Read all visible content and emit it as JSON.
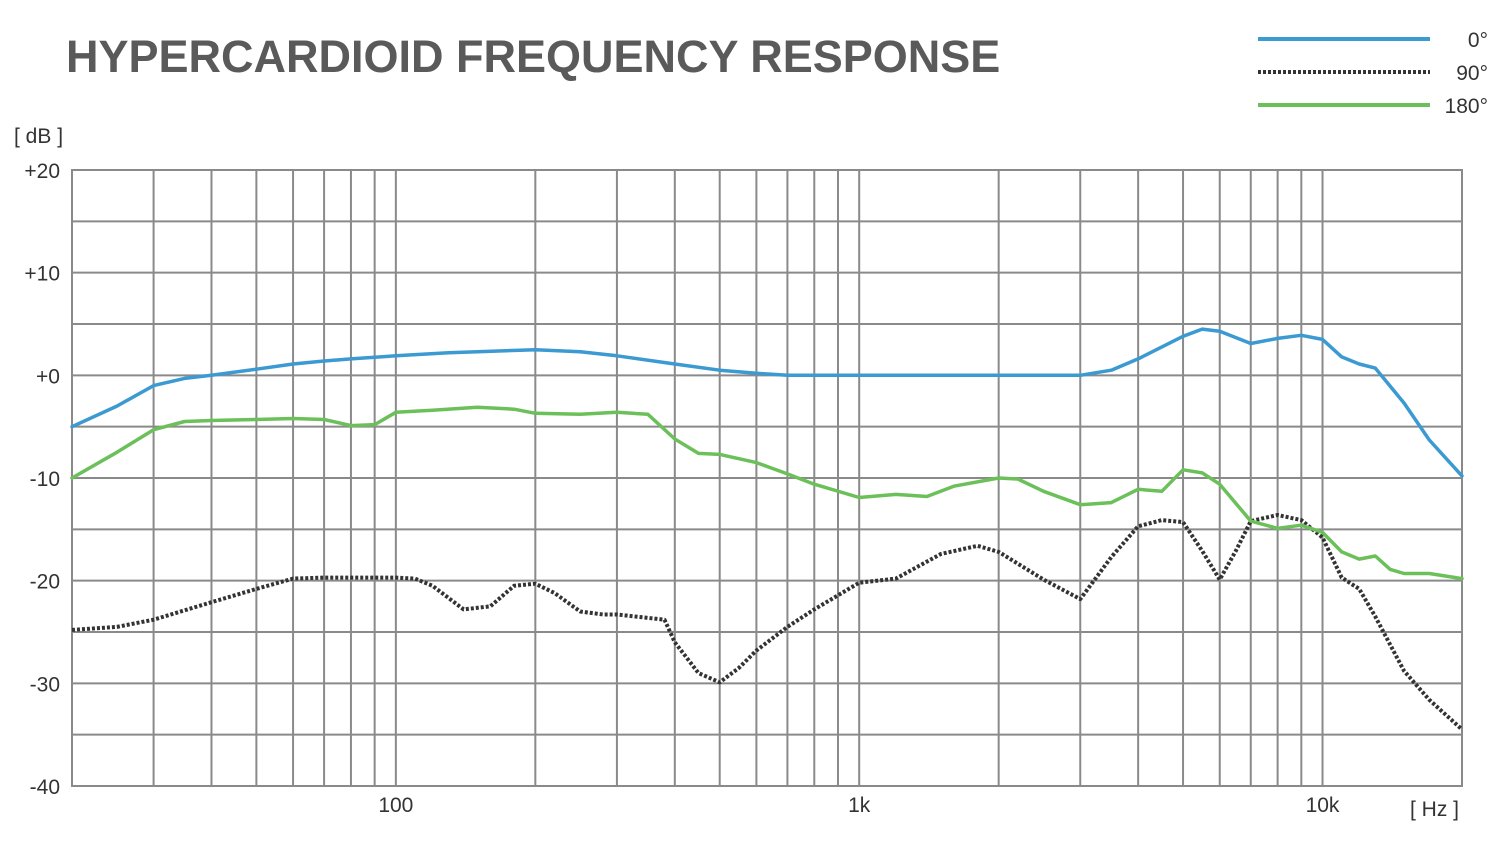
{
  "chart_data": {
    "type": "line",
    "title": "HYPERCARDIOID FREQUENCY RESPONSE",
    "ylabel": "[ dB ]",
    "xlabel": "[ Hz ]",
    "x_scale": "log",
    "xlim": [
      20,
      20000
    ],
    "ylim": [
      -40,
      20
    ],
    "grid": true,
    "legend_position": "top-right",
    "y_ticks": [
      {
        "value": 20,
        "label": "+20"
      },
      {
        "value": 10,
        "label": "+10"
      },
      {
        "value": 0,
        "label": "+0"
      },
      {
        "value": -10,
        "label": "-10"
      },
      {
        "value": -20,
        "label": "-20"
      },
      {
        "value": -30,
        "label": "-30"
      },
      {
        "value": -40,
        "label": "-40"
      }
    ],
    "x_ticks": [
      {
        "value": 100,
        "label": "100"
      },
      {
        "value": 1000,
        "label": "1k"
      },
      {
        "value": 10000,
        "label": "10k"
      }
    ],
    "series": [
      {
        "name": "0°",
        "color": "#3b9ad2",
        "style": "solid",
        "x": [
          20,
          25,
          30,
          35,
          40,
          50,
          60,
          70,
          80,
          100,
          130,
          150,
          200,
          250,
          300,
          400,
          500,
          600,
          700,
          800,
          1000,
          1500,
          2000,
          3000,
          3500,
          4000,
          5000,
          5500,
          6000,
          7000,
          8000,
          9000,
          10000,
          11000,
          12000,
          13000,
          15000,
          17000,
          20000
        ],
        "y": [
          -5,
          -3,
          -1,
          -0.3,
          0,
          0.6,
          1.1,
          1.4,
          1.6,
          1.9,
          2.2,
          2.3,
          2.5,
          2.3,
          1.9,
          1.1,
          0.5,
          0.2,
          0,
          0,
          0,
          0,
          0,
          0,
          0.5,
          1.6,
          3.8,
          4.5,
          4.3,
          3.1,
          3.6,
          3.9,
          3.5,
          1.8,
          1.1,
          0.7,
          -2.7,
          -6.3,
          -9.8
        ]
      },
      {
        "name": "90°",
        "color": "#333333",
        "style": "dotted",
        "x": [
          20,
          25,
          30,
          40,
          50,
          60,
          70,
          80,
          90,
          100,
          110,
          120,
          140,
          160,
          180,
          200,
          220,
          250,
          280,
          300,
          380,
          400,
          450,
          500,
          550,
          600,
          700,
          800,
          1000,
          1200,
          1500,
          1800,
          2000,
          2500,
          3000,
          3500,
          4000,
          4500,
          5000,
          5500,
          6000,
          6500,
          7000,
          8000,
          9000,
          10000,
          11000,
          12000,
          13000,
          15000,
          17000,
          20000
        ],
        "y": [
          -24.8,
          -24.5,
          -23.8,
          -22.1,
          -20.8,
          -19.8,
          -19.7,
          -19.7,
          -19.7,
          -19.7,
          -19.8,
          -20.5,
          -22.8,
          -22.5,
          -20.5,
          -20.3,
          -21.2,
          -23,
          -23.3,
          -23.3,
          -23.8,
          -26,
          -29,
          -29.9,
          -28.5,
          -26.8,
          -24.5,
          -22.8,
          -20.2,
          -19.8,
          -17.4,
          -16.6,
          -17.2,
          -19.9,
          -21.8,
          -17.7,
          -14.7,
          -14.1,
          -14.3,
          -17.1,
          -19.9,
          -17.1,
          -14.2,
          -13.6,
          -14.1,
          -15.8,
          -19.7,
          -20.8,
          -23.5,
          -28.8,
          -31.6,
          -34.5
        ]
      },
      {
        "name": "180°",
        "color": "#6cc05a",
        "style": "solid",
        "x": [
          20,
          25,
          30,
          35,
          40,
          50,
          60,
          70,
          80,
          90,
          100,
          120,
          150,
          180,
          200,
          250,
          300,
          350,
          400,
          450,
          500,
          600,
          700,
          800,
          1000,
          1200,
          1400,
          1600,
          2000,
          2200,
          2500,
          3000,
          3500,
          4000,
          4500,
          5000,
          5500,
          6000,
          7000,
          8000,
          9000,
          10000,
          11000,
          12000,
          13000,
          14000,
          15000,
          17000,
          20000
        ],
        "y": [
          -10,
          -7.5,
          -5.3,
          -4.5,
          -4.4,
          -4.3,
          -4.2,
          -4.3,
          -4.9,
          -4.8,
          -3.6,
          -3.4,
          -3.1,
          -3.3,
          -3.7,
          -3.8,
          -3.6,
          -3.8,
          -6.2,
          -7.6,
          -7.7,
          -8.5,
          -9.6,
          -10.6,
          -11.9,
          -11.6,
          -11.8,
          -10.8,
          -10,
          -10.1,
          -11.3,
          -12.6,
          -12.4,
          -11.1,
          -11.3,
          -9.2,
          -9.5,
          -10.6,
          -14.2,
          -14.9,
          -14.6,
          -15.3,
          -17.2,
          -17.9,
          -17.6,
          -18.9,
          -19.3,
          -19.3,
          -19.8
        ]
      }
    ]
  }
}
